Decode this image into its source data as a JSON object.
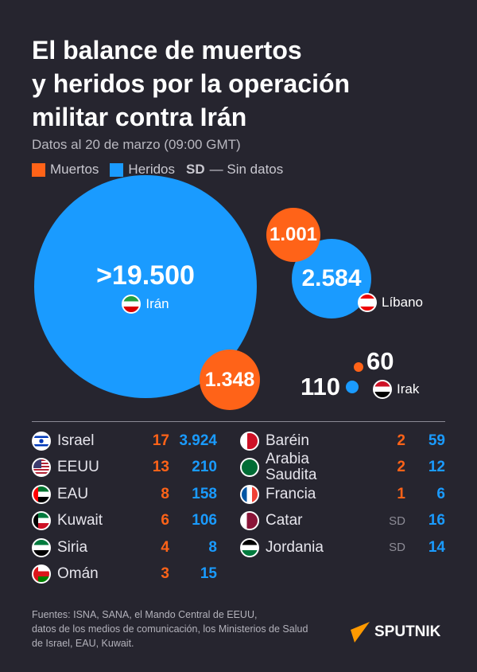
{
  "title": "El balance de muertos\ny heridos por la operación\nmilitar contra Irán",
  "subtitle": "Datos al 20 de marzo (09:00 GMT)",
  "legend": {
    "dead": "Muertos",
    "wounded": "Heridos",
    "sd_abbr": "SD",
    "sd_text": "— Sin datos"
  },
  "colors": {
    "dead": "#ff6318",
    "wounded": "#1a9bff",
    "background": "#26252f"
  },
  "chart_data": {
    "type": "bubble",
    "series": [
      {
        "name": "Muertos"
      },
      {
        "name": "Heridos"
      }
    ],
    "bubbles": [
      {
        "country": "Irán",
        "wounded": ">19.500",
        "dead": "1.348"
      },
      {
        "country": "Líbano",
        "wounded": "2.584",
        "dead": "1.001"
      },
      {
        "country": "Irak",
        "wounded": "110",
        "dead": "60"
      }
    ]
  },
  "table": {
    "left": [
      {
        "country": "Israel",
        "dead": "17",
        "wounded": "3.924",
        "flag": "israel"
      },
      {
        "country": "EEUU",
        "dead": "13",
        "wounded": "210",
        "flag": "usa"
      },
      {
        "country": "EAU",
        "dead": "8",
        "wounded": "158",
        "flag": "uae"
      },
      {
        "country": "Kuwait",
        "dead": "6",
        "wounded": "106",
        "flag": "kuwait"
      },
      {
        "country": "Siria",
        "dead": "4",
        "wounded": "8",
        "flag": "syria"
      },
      {
        "country": "Omán",
        "dead": "3",
        "wounded": "15",
        "flag": "oman"
      }
    ],
    "right": [
      {
        "country": "Baréin",
        "dead": "2",
        "wounded": "59",
        "flag": "bahrain"
      },
      {
        "country": "Arabia Saudita",
        "dead": "2",
        "wounded": "12",
        "flag": "saudi"
      },
      {
        "country": "Francia",
        "dead": "1",
        "wounded": "6",
        "flag": "france"
      },
      {
        "country": "Catar",
        "dead": "SD",
        "wounded": "16",
        "flag": "qatar"
      },
      {
        "country": "Jordania",
        "dead": "SD",
        "wounded": "14",
        "flag": "jordan"
      }
    ]
  },
  "sources": "Fuentes: ISNA, SANA, el Mando Central de EEUU,\ndatos de los medios de comunicación, los Ministerios de Salud\nde Israel, EAU, Kuwait.",
  "logo": "SPUTNIK"
}
